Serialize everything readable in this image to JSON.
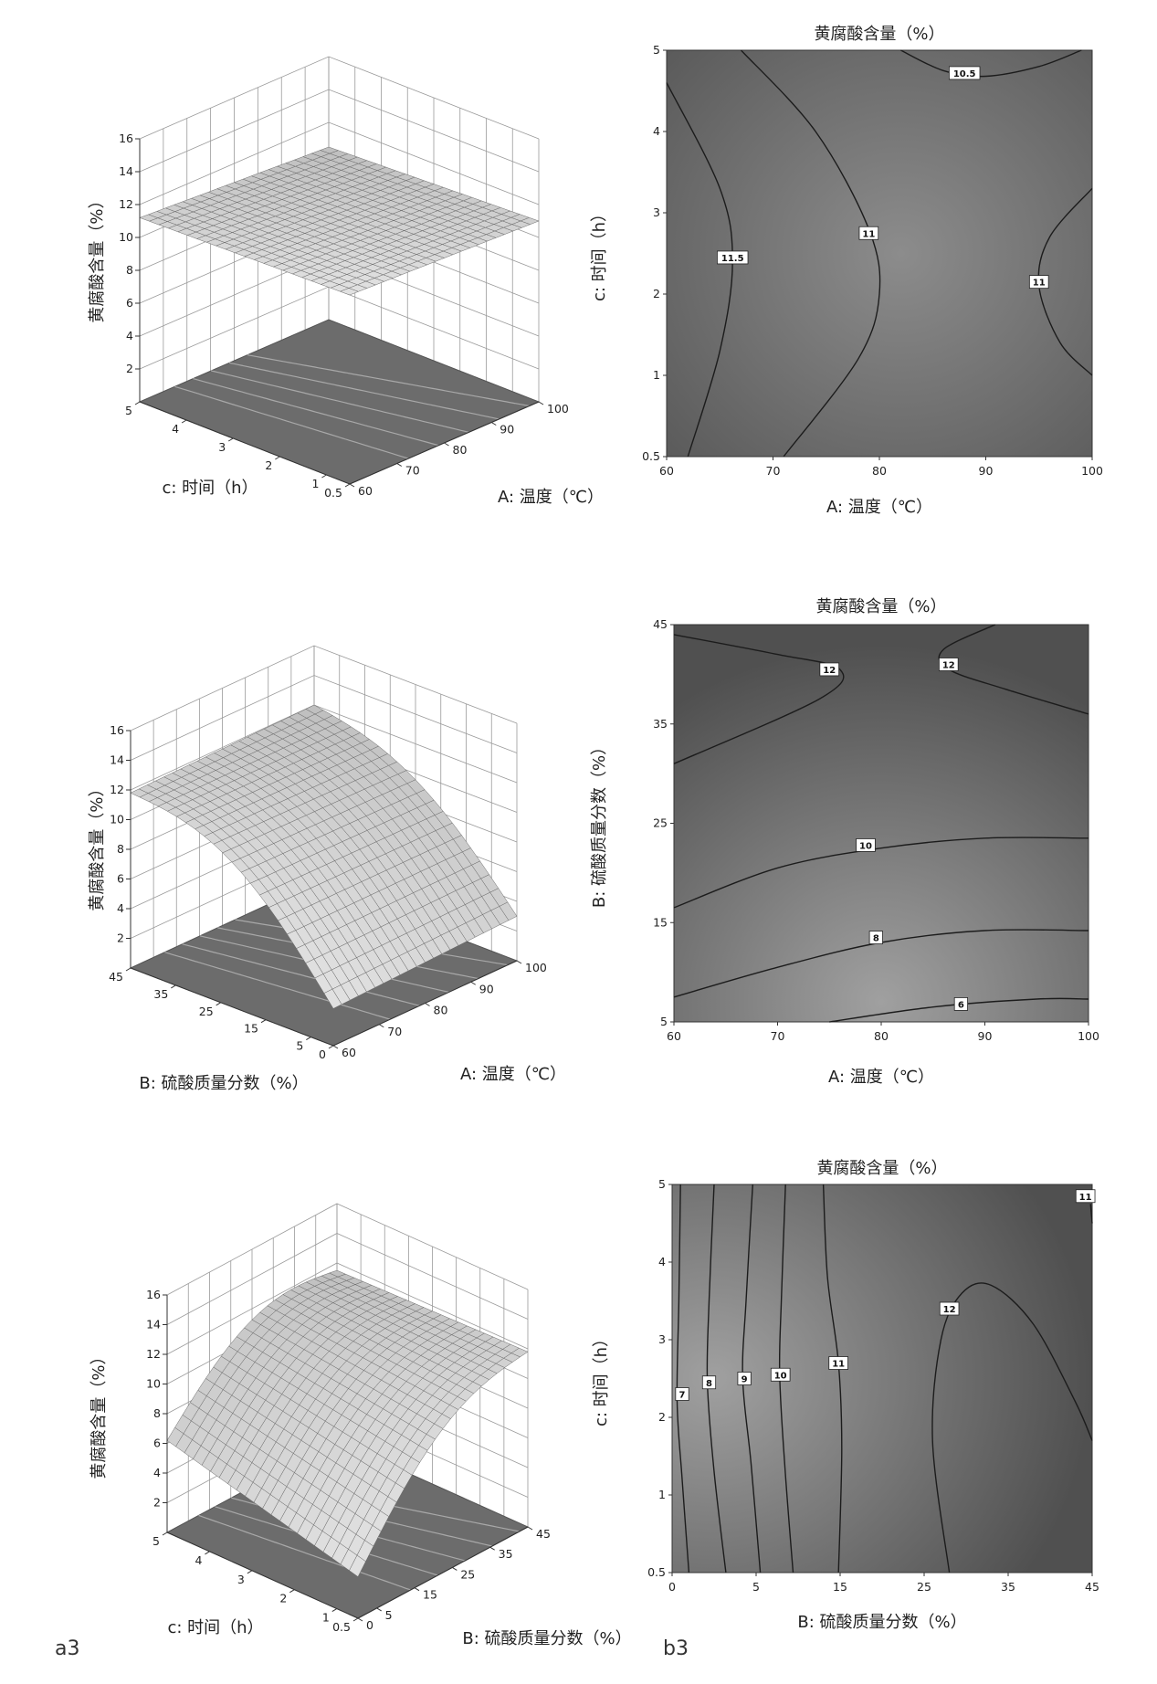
{
  "panel_labels": [
    "a3",
    "b3"
  ],
  "chart_data": [
    {
      "type": "surface",
      "zlabel": "黄腐酸含量（%）",
      "xlabel": "A: 温度（℃）",
      "ylabel": "c: 时间（h）",
      "xlim": [
        60,
        100
      ],
      "ylim": [
        0.5,
        5
      ],
      "zlim": [
        0,
        16
      ],
      "x_ticks": [
        "60",
        "70",
        "80",
        "90",
        "100"
      ],
      "y_ticks": [
        "0.5",
        "1",
        "2",
        "3",
        "4",
        "5"
      ],
      "z_ticks": [
        "2",
        "4",
        "6",
        "8",
        "10",
        "12",
        "14",
        "16"
      ],
      "surface_corners": {
        "x60_y5": 11.2,
        "x100_y5": 10.5,
        "x60_y0_5": 11.5,
        "x100_y0_5": 11.0
      }
    },
    {
      "type": "contour",
      "title": "黄腐酸含量（%）",
      "xlabel": "A: 温度（℃）",
      "ylabel": "c: 时间（h）",
      "xlim": [
        60,
        100
      ],
      "ylim": [
        0.5,
        5
      ],
      "x_ticks": [
        "60",
        "70",
        "80",
        "90",
        "100"
      ],
      "y_ticks": [
        "0.5",
        "1",
        "2",
        "3",
        "4",
        "5"
      ],
      "contours": [
        {
          "level": "11.5",
          "points": [
            [
              60,
              4.6
            ],
            [
              65,
              3.3
            ],
            [
              66.2,
              2.4
            ],
            [
              65,
              1.3
            ],
            [
              62,
              0.5
            ]
          ]
        },
        {
          "level": "11",
          "points": [
            [
              67,
              5
            ],
            [
              74,
              4.0
            ],
            [
              79,
              2.8
            ],
            [
              80,
              2.0
            ],
            [
              78,
              1.2
            ],
            [
              71,
              0.5
            ]
          ]
        },
        {
          "level": "11",
          "points": [
            [
              100,
              3.3
            ],
            [
              96,
              2.7
            ],
            [
              95,
              2.1
            ],
            [
              97,
              1.4
            ],
            [
              100,
              1.0
            ]
          ]
        },
        {
          "level": "10.5",
          "points": [
            [
              82,
              5
            ],
            [
              86,
              4.75
            ],
            [
              90,
              4.68
            ],
            [
              95,
              4.8
            ],
            [
              99,
              5
            ]
          ]
        }
      ],
      "contour_labels": [
        {
          "text": "11.5",
          "x": 66.2,
          "y": 2.45
        },
        {
          "text": "11",
          "x": 79,
          "y": 2.75
        },
        {
          "text": "11",
          "x": 95,
          "y": 2.15
        },
        {
          "text": "10.5",
          "x": 88,
          "y": 4.72
        }
      ]
    },
    {
      "type": "surface",
      "zlabel": "黄腐酸含量（%）",
      "xlabel": "A: 温度（℃）",
      "ylabel": "B: 硫酸质量分数（%）",
      "xlim": [
        60,
        100
      ],
      "ylim": [
        0,
        45
      ],
      "zlim": [
        0,
        16
      ],
      "x_ticks": [
        "60",
        "70",
        "80",
        "90",
        "100"
      ],
      "y_ticks": [
        "0",
        "5",
        "15",
        "25",
        "35",
        "45"
      ],
      "z_ticks": [
        "2",
        "4",
        "6",
        "8",
        "10",
        "12",
        "14",
        "16"
      ],
      "surface_corners": {
        "x60_y45": 11.8,
        "x100_y45": 12.0,
        "x60_y0": 2.5,
        "x100_y0": 3.0
      }
    },
    {
      "type": "contour",
      "title": "黄腐酸含量（%）",
      "xlabel": "A: 温度（℃）",
      "ylabel": "B: 硫酸质量分数（%）",
      "xlim": [
        60,
        100
      ],
      "ylim": [
        5,
        45
      ],
      "x_ticks": [
        "60",
        "70",
        "80",
        "90",
        "100"
      ],
      "y_ticks": [
        "5",
        "15",
        "25",
        "35",
        "45"
      ],
      "contours": [
        {
          "level": "12",
          "points": [
            [
              60,
              44
            ],
            [
              70,
              42
            ],
            [
              76,
              40.5
            ],
            [
              74,
              37.5
            ],
            [
              60,
              31
            ]
          ]
        },
        {
          "level": "12",
          "points": [
            [
              91,
              45
            ],
            [
              86,
              42.5
            ],
            [
              86.5,
              40.5
            ],
            [
              92,
              38.5
            ],
            [
              100,
              36
            ]
          ]
        },
        {
          "level": "10",
          "points": [
            [
              60,
              16.5
            ],
            [
              70,
              20.5
            ],
            [
              80,
              22.5
            ],
            [
              90,
              23.5
            ],
            [
              100,
              23.5
            ]
          ]
        },
        {
          "level": "8",
          "points": [
            [
              60,
              7.5
            ],
            [
              70,
              10.5
            ],
            [
              80,
              13.0
            ],
            [
              90,
              14.2
            ],
            [
              100,
              14.2
            ]
          ]
        },
        {
          "level": "6",
          "points": [
            [
              75,
              5
            ],
            [
              85,
              6.5
            ],
            [
              95,
              7.3
            ],
            [
              100,
              7.3
            ]
          ]
        }
      ],
      "contour_labels": [
        {
          "text": "12",
          "x": 75,
          "y": 40.5
        },
        {
          "text": "12",
          "x": 86.5,
          "y": 41
        },
        {
          "text": "10",
          "x": 78.5,
          "y": 22.8
        },
        {
          "text": "8",
          "x": 79.5,
          "y": 13.5
        },
        {
          "text": "6",
          "x": 87.7,
          "y": 6.8
        }
      ]
    },
    {
      "type": "surface",
      "zlabel": "黄腐酸含量（%）",
      "xlabel": "B: 硫酸质量分数（%）",
      "ylabel": "c: 时间（h）",
      "xlim": [
        0,
        45
      ],
      "ylim": [
        0.5,
        5
      ],
      "zlim": [
        0,
        16
      ],
      "x_ticks": [
        "0",
        "5",
        "15",
        "25",
        "35",
        "45"
      ],
      "y_ticks": [
        "0.5",
        "1",
        "2",
        "3",
        "4",
        "5"
      ],
      "z_ticks": [
        "2",
        "4",
        "6",
        "8",
        "10",
        "12",
        "14",
        "16"
      ],
      "surface_corners": {
        "x0_y5": 6.2,
        "x45_y5": 11.5,
        "x0_y0_5": 2.8,
        "x45_y0_5": 11.8
      }
    },
    {
      "type": "contour",
      "title": "黄腐酸含量（%）",
      "xlabel": "B: 硫酸质量分数（%）",
      "ylabel": "c: 时间（h）",
      "xlim": [
        0,
        45
      ],
      "ylim": [
        0.5,
        5
      ],
      "x_ticks": [
        "0",
        "5",
        "15",
        "25",
        "35",
        "45"
      ],
      "y_ticks": [
        "0.5",
        "1",
        "2",
        "3",
        "4",
        "5"
      ],
      "contours": [
        {
          "level": "7",
          "points": [
            [
              0.5,
              5
            ],
            [
              0.4,
              3.5
            ],
            [
              0.3,
              2.2
            ],
            [
              0.6,
              1.2
            ],
            [
              1.0,
              0.5
            ]
          ]
        },
        {
          "level": "8",
          "points": [
            [
              2.5,
              5
            ],
            [
              2.2,
              3.5
            ],
            [
              2.1,
              2.45
            ],
            [
              2.5,
              1.3
            ],
            [
              3.2,
              0.5
            ]
          ]
        },
        {
          "level": "9",
          "points": [
            [
              4.8,
              5
            ],
            [
              4.4,
              3.5
            ],
            [
              4.2,
              2.5
            ],
            [
              4.7,
              1.4
            ],
            [
              5.5,
              0.5
            ]
          ]
        },
        {
          "level": "10",
          "points": [
            [
              8.5,
              5
            ],
            [
              8.0,
              3.5
            ],
            [
              7.8,
              2.55
            ],
            [
              8.4,
              1.4
            ],
            [
              9.4,
              0.5
            ]
          ]
        },
        {
          "level": "11",
          "points": [
            [
              13,
              5
            ],
            [
              13.5,
              3.8
            ],
            [
              14.8,
              2.7
            ],
            [
              15.2,
              1.6
            ],
            [
              14.8,
              0.5
            ]
          ]
        },
        {
          "level": "11",
          "points": [
            [
              44.8,
              4.75
            ],
            [
              45,
              4.5
            ]
          ]
        },
        {
          "level": "12",
          "points": [
            [
              28,
              0.5
            ],
            [
              26,
              1.7
            ],
            [
              27,
              3.0
            ],
            [
              29.5,
              3.6
            ],
            [
              33,
              3.7
            ],
            [
              38,
              3.2
            ],
            [
              43,
              2.2
            ],
            [
              45,
              1.7
            ]
          ]
        }
      ],
      "contour_labels": [
        {
          "text": "7",
          "x": 0.6,
          "y": 2.3
        },
        {
          "text": "8",
          "x": 2.2,
          "y": 2.45
        },
        {
          "text": "9",
          "x": 4.3,
          "y": 2.5
        },
        {
          "text": "10",
          "x": 7.9,
          "y": 2.55
        },
        {
          "text": "11",
          "x": 14.8,
          "y": 2.7
        },
        {
          "text": "12",
          "x": 28,
          "y": 3.4
        },
        {
          "text": "11",
          "x": 44.2,
          "y": 4.85
        }
      ]
    }
  ]
}
